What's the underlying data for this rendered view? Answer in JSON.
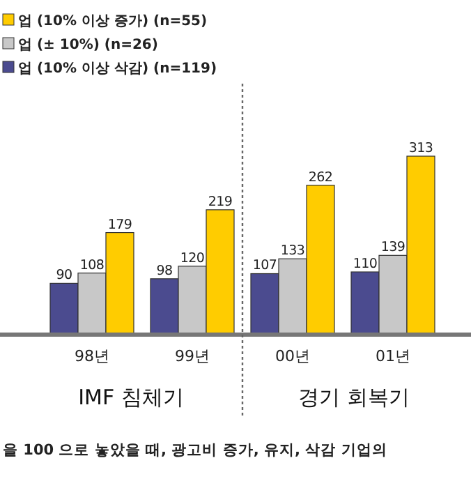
{
  "chart_data": {
    "type": "bar",
    "categories": [
      "98년",
      "99년",
      "00년",
      "01년"
    ],
    "series": [
      {
        "name": "업 (10% 이상 삭감) (n=119)",
        "color": "#4b4b8f",
        "values": [
          90,
          98,
          107,
          110
        ]
      },
      {
        "name": "업 (± 10%) (n=26)",
        "color": "#c8c8c8",
        "values": [
          108,
          120,
          133,
          139
        ]
      },
      {
        "name": "업 (10% 이상 증가) (n=55)",
        "color": "#ffcc00",
        "values": [
          179,
          219,
          262,
          313
        ]
      }
    ],
    "data_labels": true,
    "legend": "top left",
    "annotations": [
      "IMF 침체기",
      "경기 회복기",
      "을 100 으로 놓았을 때, 광고비 증가, 유지, 삭감 기업의"
    ]
  }
}
